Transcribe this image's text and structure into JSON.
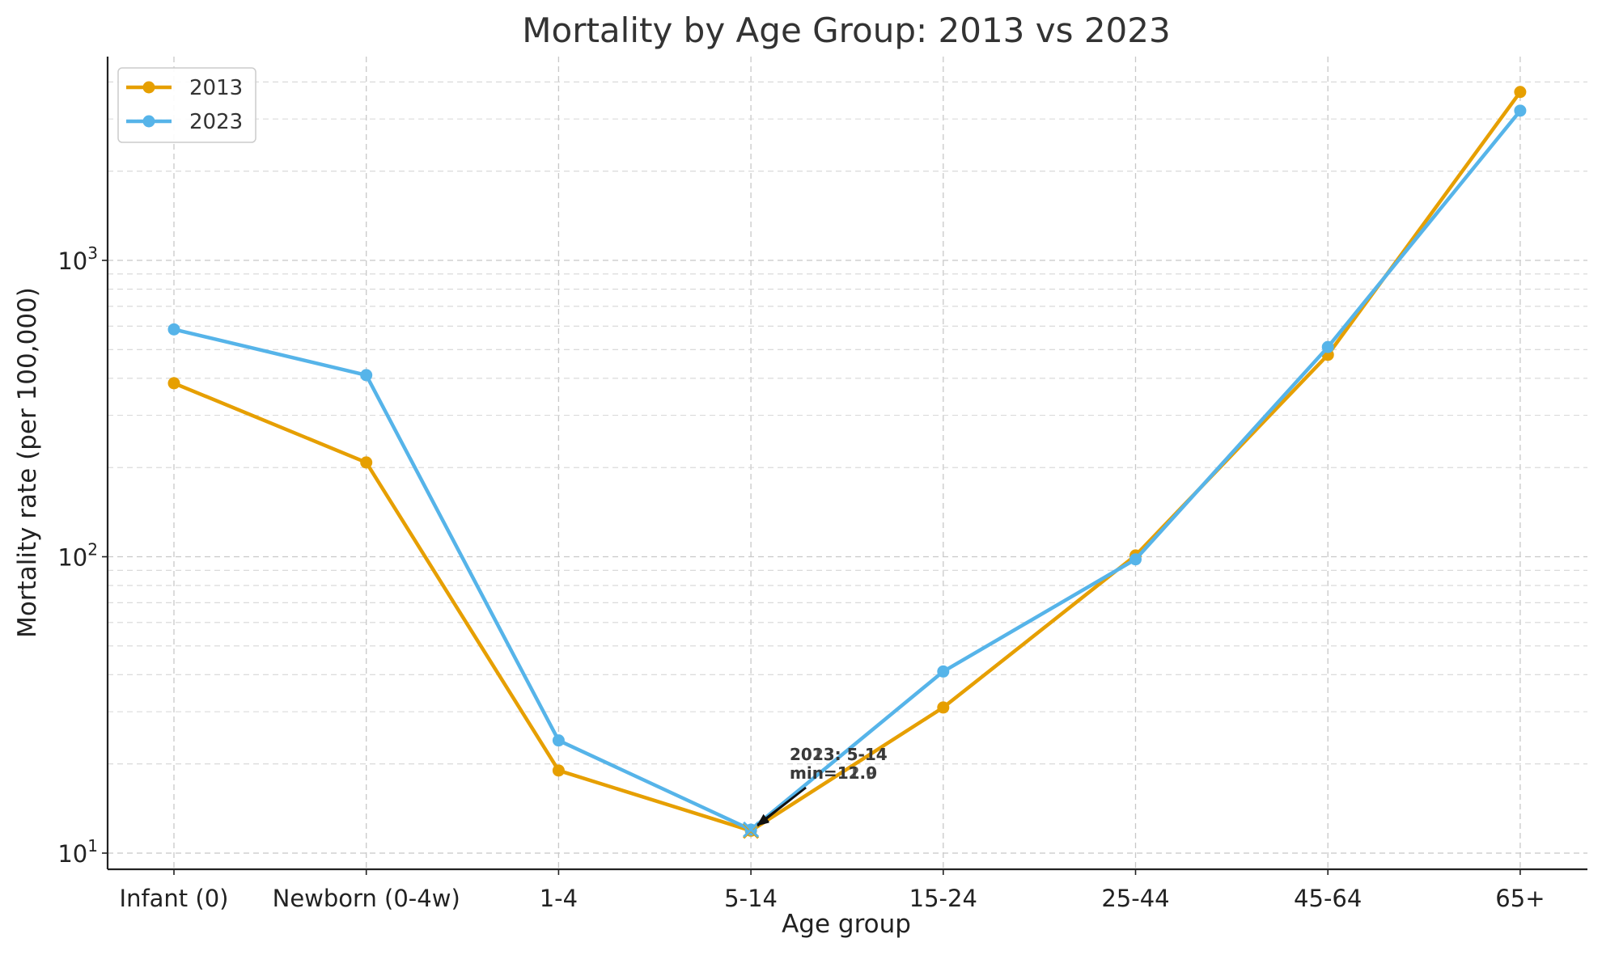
{
  "chart_data": {
    "type": "line",
    "title": "Mortality by Age Group: 2013 vs 2023",
    "xlabel": "Age group",
    "ylabel": "Mortality rate (per 100,000)",
    "yscale": "log",
    "ylim": [
      9,
      5000
    ],
    "y_ticks": [
      10,
      100,
      1000
    ],
    "y_tick_labels": [
      {
        "base": "10",
        "exp": "1"
      },
      {
        "base": "10",
        "exp": "2"
      },
      {
        "base": "10",
        "exp": "3"
      }
    ],
    "grid": true,
    "legend_position": "top-left",
    "categories": [
      "Infant (0)",
      "Newborn (0-4w)",
      "1-4",
      "5-14",
      "15-24",
      "25-44",
      "45-64",
      "65+"
    ],
    "series": [
      {
        "name": "2013",
        "color": "#E69F00",
        "values": [
          385,
          208,
          19,
          11.9,
          31,
          101,
          480,
          3700
        ]
      },
      {
        "name": "2023",
        "color": "#56B4E9",
        "values": [
          585,
          410,
          24,
          12.0,
          41,
          98,
          510,
          3200
        ]
      }
    ],
    "annotations": [
      {
        "series": "2013",
        "category": "5-14",
        "line1": "2013: 5-14",
        "line2": "min=11.9"
      },
      {
        "series": "2023",
        "category": "5-14",
        "line1": "2023: 5-14",
        "line2": "min=12.0"
      }
    ]
  }
}
